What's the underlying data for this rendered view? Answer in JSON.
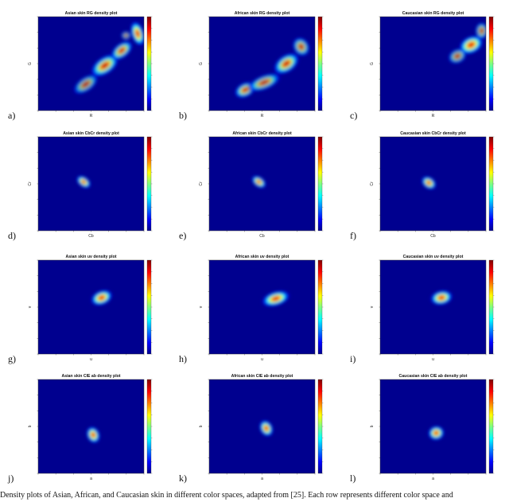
{
  "caption": "Density plots of Asian, African, and Caucasian skin in different color spaces, adapted from [25]. Each row represents different color space and",
  "colors": {
    "background": "#00008f",
    "colormap": "jet"
  },
  "chart_data": [
    {
      "type": "heatmap",
      "tag": "a)",
      "title": "Asian skin RG density plot",
      "xlabel": "R",
      "ylabel": "G",
      "blobs": [
        [
          0.45,
          0.72,
          0.09,
          0.05,
          0.5,
          -0.7
        ],
        [
          0.63,
          0.52,
          0.1,
          0.06,
          0.85,
          -0.7
        ],
        [
          0.79,
          0.36,
          0.08,
          0.05,
          0.8,
          -0.8
        ],
        [
          0.94,
          0.18,
          0.04,
          0.09,
          1.0,
          -0.3
        ],
        [
          0.83,
          0.2,
          0.03,
          0.03,
          0.5,
          0
        ]
      ]
    },
    {
      "type": "heatmap",
      "tag": "b)",
      "title": "African skin RG density plot",
      "xlabel": "R",
      "ylabel": "G",
      "blobs": [
        [
          0.34,
          0.78,
          0.07,
          0.05,
          0.8,
          -0.5
        ],
        [
          0.52,
          0.7,
          0.11,
          0.05,
          0.65,
          -0.4
        ],
        [
          0.73,
          0.5,
          0.09,
          0.06,
          0.85,
          -0.7
        ],
        [
          0.87,
          0.32,
          0.05,
          0.07,
          0.65,
          -0.6
        ]
      ]
    },
    {
      "type": "heatmap",
      "tag": "c)",
      "title": "Caucasian skin RG density plot",
      "xlabel": "R",
      "ylabel": "G",
      "blobs": [
        [
          0.86,
          0.3,
          0.08,
          0.06,
          1.0,
          -0.5
        ],
        [
          0.73,
          0.42,
          0.06,
          0.05,
          0.55,
          -0.5
        ],
        [
          0.96,
          0.15,
          0.04,
          0.06,
          0.6,
          0
        ]
      ]
    },
    {
      "type": "heatmap",
      "tag": "d)",
      "title": "Asian skin CbCr density plot",
      "xlabel": "Cb",
      "ylabel": "Cr",
      "blobs": [
        [
          0.43,
          0.48,
          0.05,
          0.035,
          1.0,
          0.75
        ]
      ]
    },
    {
      "type": "heatmap",
      "tag": "e)",
      "title": "African skin CbCr density plot",
      "xlabel": "Cb",
      "ylabel": "Cr",
      "blobs": [
        [
          0.47,
          0.48,
          0.05,
          0.035,
          1.0,
          0.75
        ]
      ]
    },
    {
      "type": "heatmap",
      "tag": "f)",
      "title": "Caucasian skin CbCr density plot",
      "xlabel": "Cb",
      "ylabel": "Cr",
      "blobs": [
        [
          0.46,
          0.49,
          0.05,
          0.04,
          1.0,
          0.75
        ]
      ]
    },
    {
      "type": "heatmap",
      "tag": "g)",
      "title": "Asian skin uv density plot",
      "xlabel": "u",
      "ylabel": "v",
      "blobs": [
        [
          0.6,
          0.4,
          0.07,
          0.05,
          1.0,
          -0.4
        ]
      ]
    },
    {
      "type": "heatmap",
      "tag": "h)",
      "title": "African skin uv density plot",
      "xlabel": "u",
      "ylabel": "v",
      "blobs": [
        [
          0.63,
          0.41,
          0.09,
          0.05,
          1.0,
          -0.3
        ]
      ]
    },
    {
      "type": "heatmap",
      "tag": "i)",
      "title": "Caucasian skin uv density plot",
      "xlabel": "u",
      "ylabel": "v",
      "blobs": [
        [
          0.58,
          0.4,
          0.07,
          0.05,
          1.0,
          -0.2
        ]
      ]
    },
    {
      "type": "heatmap",
      "tag": "j)",
      "title": "Asian skin CIE ab density plot",
      "xlabel": "a",
      "ylabel": "b",
      "blobs": [
        [
          0.52,
          0.59,
          0.04,
          0.06,
          1.0,
          -0.4
        ]
      ]
    },
    {
      "type": "heatmap",
      "tag": "k)",
      "title": "African skin CIE ab density plot",
      "xlabel": "a",
      "ylabel": "b",
      "blobs": [
        [
          0.54,
          0.52,
          0.04,
          0.06,
          1.0,
          -0.5
        ]
      ]
    },
    {
      "type": "heatmap",
      "tag": "l)",
      "title": "Caucasian skin CIE ab density plot",
      "xlabel": "a",
      "ylabel": "b",
      "blobs": [
        [
          0.53,
          0.57,
          0.05,
          0.05,
          1.0,
          -0.2
        ]
      ]
    }
  ]
}
